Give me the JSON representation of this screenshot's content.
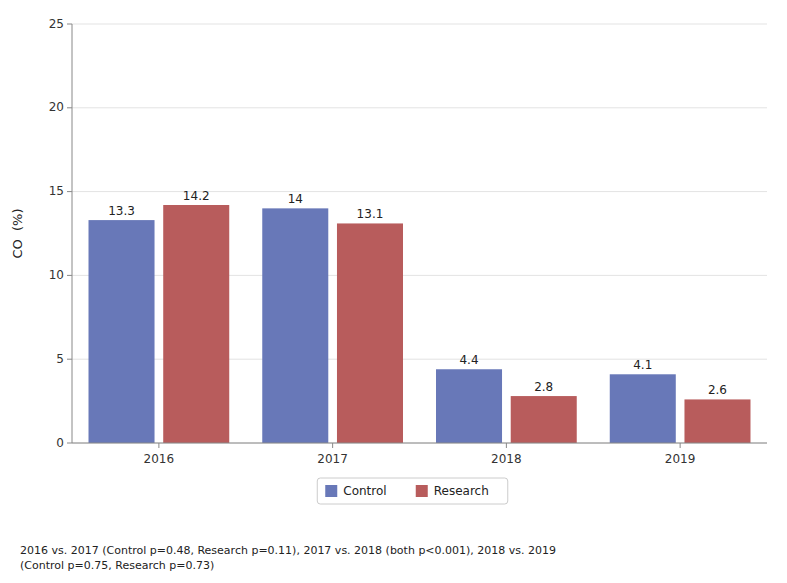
{
  "chart_data": {
    "type": "bar",
    "categories": [
      "2016",
      "2017",
      "2018",
      "2019"
    ],
    "series": [
      {
        "name": "Control",
        "color": "#6878b8",
        "values": [
          13.3,
          14.0,
          4.4,
          4.1
        ]
      },
      {
        "name": "Research",
        "color": "#b85c5c",
        "values": [
          14.2,
          13.1,
          2.8,
          2.6
        ]
      }
    ],
    "y_label": "CO  (%)",
    "ylim": [
      0,
      25
    ],
    "yticks": [
      0,
      5,
      10,
      15,
      20,
      25
    ],
    "grid": true,
    "legend": "bottom",
    "data_labels": true,
    "annotation": "2016 vs. 2017 (Control p=0.48, Research p=0.11), 2017 vs. 2018 (both p<0.001), 2018 vs. 2019\n(Control p=0.75, Research p=0.73)"
  }
}
